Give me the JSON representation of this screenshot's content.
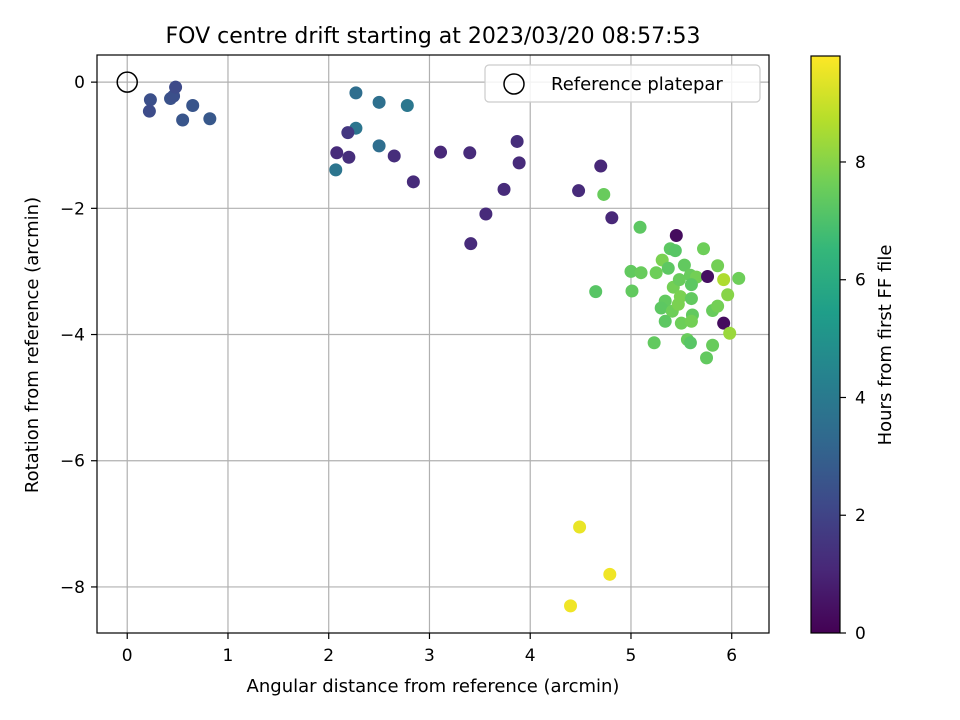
{
  "chart_data": {
    "type": "scatter",
    "title": "FOV centre drift starting at 2023/03/20 08:57:53",
    "xlabel": "Angular distance from reference (arcmin)",
    "ylabel": "Rotation from reference (arcmin)",
    "xlim": [
      -0.3,
      6.37
    ],
    "ylim": [
      -8.73,
      0.43
    ],
    "xticks": [
      0,
      1,
      2,
      3,
      4,
      5,
      6
    ],
    "yticks": [
      0,
      -2,
      -4,
      -6,
      -8
    ],
    "grid": true,
    "legend": {
      "position": "top-right",
      "entries": [
        "Reference platepar"
      ]
    },
    "reference": {
      "x": 0,
      "y": 0,
      "marker": "open-circle"
    },
    "colorbar": {
      "label": "Hours from first FF file",
      "range": [
        0,
        9.8
      ],
      "ticks": [
        0,
        2,
        4,
        6,
        8
      ],
      "colormap": "viridis",
      "colors": [
        "#440154",
        "#482878",
        "#3e4989",
        "#31688e",
        "#26828e",
        "#1f9e89",
        "#35b779",
        "#6ece58",
        "#b5de2b",
        "#fde725"
      ]
    },
    "points": [
      {
        "x": 0.23,
        "y": -0.28,
        "h": 2.4
      },
      {
        "x": 0.22,
        "y": -0.46,
        "h": 2.3
      },
      {
        "x": 0.43,
        "y": -0.26,
        "h": 2.5
      },
      {
        "x": 0.46,
        "y": -0.22,
        "h": 2.4
      },
      {
        "x": 0.48,
        "y": -0.08,
        "h": 2.2
      },
      {
        "x": 0.55,
        "y": -0.6,
        "h": 2.6
      },
      {
        "x": 0.65,
        "y": -0.37,
        "h": 2.6
      },
      {
        "x": 0.82,
        "y": -0.58,
        "h": 2.7
      },
      {
        "x": 2.27,
        "y": -0.17,
        "h": 3.5
      },
      {
        "x": 2.5,
        "y": -0.32,
        "h": 3.6
      },
      {
        "x": 2.78,
        "y": -0.37,
        "h": 3.9
      },
      {
        "x": 2.27,
        "y": -0.73,
        "h": 3.8
      },
      {
        "x": 2.19,
        "y": -0.8,
        "h": 1.6
      },
      {
        "x": 2.08,
        "y": -1.12,
        "h": 1.2
      },
      {
        "x": 2.2,
        "y": -1.19,
        "h": 1.3
      },
      {
        "x": 2.5,
        "y": -1.01,
        "h": 3.5
      },
      {
        "x": 2.65,
        "y": -1.17,
        "h": 1.3
      },
      {
        "x": 2.07,
        "y": -1.39,
        "h": 3.8
      },
      {
        "x": 2.84,
        "y": -1.58,
        "h": 1.2
      },
      {
        "x": 3.11,
        "y": -1.11,
        "h": 1.1
      },
      {
        "x": 3.4,
        "y": -1.12,
        "h": 1.2
      },
      {
        "x": 3.87,
        "y": -0.94,
        "h": 1.3
      },
      {
        "x": 3.89,
        "y": -1.28,
        "h": 1.2
      },
      {
        "x": 3.74,
        "y": -1.7,
        "h": 1.2
      },
      {
        "x": 3.56,
        "y": -2.09,
        "h": 1.2
      },
      {
        "x": 3.41,
        "y": -2.56,
        "h": 1.2
      },
      {
        "x": 4.48,
        "y": -1.72,
        "h": 1.2
      },
      {
        "x": 4.7,
        "y": -1.33,
        "h": 1.1
      },
      {
        "x": 4.81,
        "y": -2.15,
        "h": 1.1
      },
      {
        "x": 4.73,
        "y": -1.78,
        "h": 7.5
      },
      {
        "x": 5.09,
        "y": -2.3,
        "h": 7.3
      },
      {
        "x": 5.45,
        "y": -2.43,
        "h": 0.3
      },
      {
        "x": 5.39,
        "y": -2.64,
        "h": 7.3
      },
      {
        "x": 5.44,
        "y": -2.67,
        "h": 7.2
      },
      {
        "x": 5.72,
        "y": -2.64,
        "h": 7.6
      },
      {
        "x": 5.86,
        "y": -2.91,
        "h": 7.7
      },
      {
        "x": 5.0,
        "y": -3.0,
        "h": 7.4
      },
      {
        "x": 5.1,
        "y": -3.02,
        "h": 7.5
      },
      {
        "x": 5.25,
        "y": -3.02,
        "h": 7.6
      },
      {
        "x": 5.31,
        "y": -2.82,
        "h": 7.8
      },
      {
        "x": 5.37,
        "y": -2.95,
        "h": 7.3
      },
      {
        "x": 5.53,
        "y": -2.9,
        "h": 7.4
      },
      {
        "x": 5.59,
        "y": -3.06,
        "h": 7.5
      },
      {
        "x": 5.65,
        "y": -3.09,
        "h": 7.7
      },
      {
        "x": 5.76,
        "y": -3.08,
        "h": 0.4
      },
      {
        "x": 5.92,
        "y": -3.13,
        "h": 8.6
      },
      {
        "x": 6.07,
        "y": -3.11,
        "h": 7.6
      },
      {
        "x": 4.65,
        "y": -3.32,
        "h": 7.2
      },
      {
        "x": 5.01,
        "y": -3.31,
        "h": 7.4
      },
      {
        "x": 5.42,
        "y": -3.25,
        "h": 7.7
      },
      {
        "x": 5.48,
        "y": -3.13,
        "h": 7.5
      },
      {
        "x": 5.6,
        "y": -3.21,
        "h": 7.3
      },
      {
        "x": 5.34,
        "y": -3.47,
        "h": 7.4
      },
      {
        "x": 5.49,
        "y": -3.4,
        "h": 7.8
      },
      {
        "x": 5.6,
        "y": -3.43,
        "h": 7.4
      },
      {
        "x": 5.96,
        "y": -3.37,
        "h": 8.0
      },
      {
        "x": 5.3,
        "y": -3.58,
        "h": 7.3
      },
      {
        "x": 5.41,
        "y": -3.63,
        "h": 7.6
      },
      {
        "x": 5.47,
        "y": -3.52,
        "h": 7.8
      },
      {
        "x": 5.61,
        "y": -3.69,
        "h": 7.4
      },
      {
        "x": 5.81,
        "y": -3.62,
        "h": 7.5
      },
      {
        "x": 5.86,
        "y": -3.55,
        "h": 7.7
      },
      {
        "x": 5.34,
        "y": -3.79,
        "h": 7.3
      },
      {
        "x": 5.5,
        "y": -3.82,
        "h": 7.6
      },
      {
        "x": 5.6,
        "y": -3.79,
        "h": 7.7
      },
      {
        "x": 5.92,
        "y": -3.82,
        "h": 0.3
      },
      {
        "x": 5.98,
        "y": -3.98,
        "h": 8.3
      },
      {
        "x": 5.23,
        "y": -4.13,
        "h": 7.4
      },
      {
        "x": 5.56,
        "y": -4.08,
        "h": 7.5
      },
      {
        "x": 5.59,
        "y": -4.13,
        "h": 7.2
      },
      {
        "x": 5.81,
        "y": -4.17,
        "h": 7.5
      },
      {
        "x": 5.75,
        "y": -4.37,
        "h": 7.4
      },
      {
        "x": 4.49,
        "y": -7.05,
        "h": 9.5
      },
      {
        "x": 4.79,
        "y": -7.8,
        "h": 9.6
      },
      {
        "x": 4.4,
        "y": -8.3,
        "h": 9.6
      }
    ]
  }
}
